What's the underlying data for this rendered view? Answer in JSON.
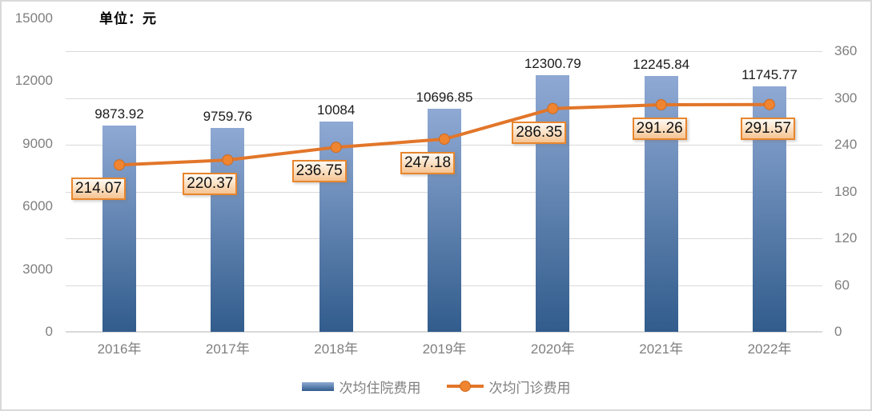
{
  "chart_data": {
    "type": "bar+line",
    "title": "",
    "unit_label": "单位：元",
    "categories": [
      "2016年",
      "2017年",
      "2018年",
      "2019年",
      "2020年",
      "2021年",
      "2022年"
    ],
    "series": [
      {
        "name": "次均住院费用",
        "type": "bar",
        "axis": "left",
        "values": [
          9873.92,
          9759.76,
          10084,
          10696.85,
          12300.79,
          12245.84,
          11745.77
        ],
        "labels": [
          "9873.92",
          "9759.76",
          "10084",
          "10696.85",
          "12300.79",
          "12245.84",
          "11745.77"
        ]
      },
      {
        "name": "次均门诊费用",
        "type": "line",
        "axis": "right",
        "values": [
          214.07,
          220.37,
          236.75,
          247.18,
          286.35,
          291.26,
          291.57
        ],
        "labels": [
          "214.07",
          "220.37",
          "236.75",
          "247.18",
          "286.35",
          "291.26",
          "291.57"
        ]
      }
    ],
    "left_axis": {
      "min": 0,
      "max": 15000,
      "step": 3000,
      "tick_labels": [
        "0",
        "3000",
        "6000",
        "9000",
        "12000",
        "15000"
      ]
    },
    "right_axis": {
      "min": 0,
      "max": 360,
      "step": 60,
      "tick_labels": [
        "0",
        "60",
        "120",
        "180",
        "240",
        "300",
        "360"
      ]
    },
    "grid": true,
    "legend": {
      "position": "bottom",
      "entries": [
        {
          "label": "次均住院费用",
          "marker": "bar-swatch"
        },
        {
          "label": "次均门诊费用",
          "marker": "line-dot"
        }
      ]
    },
    "colors": {
      "bar_gradient_top": "#8fa9d4",
      "bar_gradient_bottom": "#315c8c",
      "line": "#e2762a",
      "marker_fill": "#ef8431",
      "marker_edge": "#cf6a1e",
      "label_box_border": "#e8862d",
      "label_box_fill_bottom": "#f6c493",
      "gridline": "#d9d9d9",
      "axis_text": "#7f7f7f",
      "bar_value_text": "#1a1a1a"
    }
  }
}
